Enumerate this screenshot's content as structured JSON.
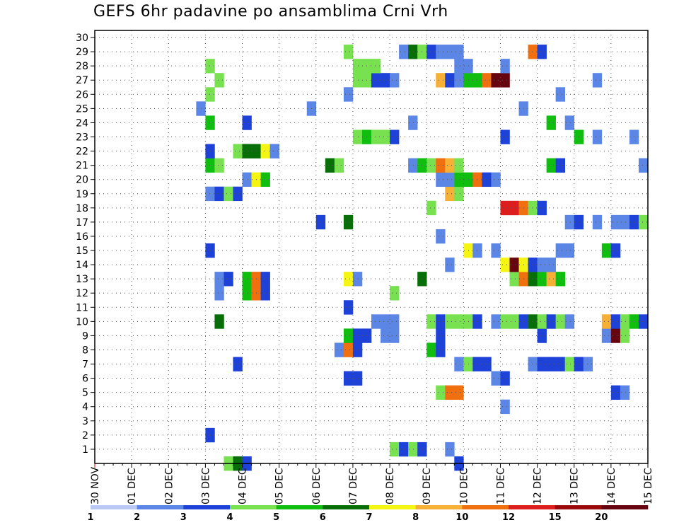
{
  "title": "GEFS 6hr padavine po ansamblima Crni Vrh",
  "chart_data": {
    "type": "heatmap",
    "title": "GEFS 6hr padavine po ansamblima Crni Vrh",
    "x_tick_labels": [
      "30 NOV",
      "01 DEC",
      "02 DEC",
      "03 DEC",
      "04 DEC",
      "05 DEC",
      "06 DEC",
      "07 DEC",
      "08 DEC",
      "09 DEC",
      "10 DEC",
      "11 DEC",
      "12 DEC",
      "13 DEC",
      "14 DEC",
      "15 DEC"
    ],
    "y_tick_labels": [
      "1",
      "2",
      "3",
      "4",
      "5",
      "6",
      "7",
      "8",
      "9",
      "10",
      "11",
      "12",
      "13",
      "14",
      "15",
      "16",
      "17",
      "18",
      "19",
      "20",
      "21",
      "22",
      "23",
      "24",
      "25",
      "26",
      "27",
      "28",
      "29",
      "30"
    ],
    "y_range": [
      0,
      30
    ],
    "x_range_days": [
      0,
      15
    ],
    "time_step_hours": 6,
    "grid": "dotted",
    "colorbar": {
      "labels": [
        "1",
        "2",
        "3",
        "4",
        "5",
        "6",
        "7",
        "8",
        "10",
        "12",
        "15",
        "20"
      ],
      "colors": [
        "#b9c8f5",
        "#5b86e6",
        "#1e42d8",
        "#78e150",
        "#10be10",
        "#086e08",
        "#f5f514",
        "#f5b035",
        "#f0700f",
        "#dc1e1e",
        "#9b0a0a",
        "#66050f"
      ]
    },
    "cells": [
      [
        3.5,
        0,
        3
      ],
      [
        3.75,
        0,
        5
      ],
      [
        4.0,
        0,
        2
      ],
      [
        9.75,
        0,
        2
      ],
      [
        8.0,
        1,
        3
      ],
      [
        8.25,
        1,
        2
      ],
      [
        8.5,
        1,
        3
      ],
      [
        8.75,
        1,
        2
      ],
      [
        9.5,
        1,
        1
      ],
      [
        3.0,
        2,
        2
      ],
      [
        11.0,
        4,
        1
      ],
      [
        9.25,
        5,
        3
      ],
      [
        9.5,
        5,
        8
      ],
      [
        9.75,
        5,
        8
      ],
      [
        14.0,
        5,
        2
      ],
      [
        14.25,
        5,
        1
      ],
      [
        6.75,
        6,
        2
      ],
      [
        7.0,
        6,
        2
      ],
      [
        10.75,
        6,
        1
      ],
      [
        11.0,
        6,
        2
      ],
      [
        3.75,
        7,
        2
      ],
      [
        9.75,
        7,
        1
      ],
      [
        10.0,
        7,
        3
      ],
      [
        10.25,
        7,
        2
      ],
      [
        10.5,
        7,
        2
      ],
      [
        11.75,
        7,
        1
      ],
      [
        12.0,
        7,
        2
      ],
      [
        12.25,
        7,
        2
      ],
      [
        12.5,
        7,
        2
      ],
      [
        12.75,
        7,
        3
      ],
      [
        13.0,
        7,
        2
      ],
      [
        13.25,
        7,
        1
      ],
      [
        6.5,
        8,
        1
      ],
      [
        6.75,
        8,
        8
      ],
      [
        7.0,
        8,
        2
      ],
      [
        9.0,
        8,
        4
      ],
      [
        9.25,
        8,
        2
      ],
      [
        6.75,
        9,
        4
      ],
      [
        7.0,
        9,
        2
      ],
      [
        7.25,
        9,
        2
      ],
      [
        7.75,
        9,
        1
      ],
      [
        8.0,
        9,
        1
      ],
      [
        9.25,
        9,
        2
      ],
      [
        12.0,
        9,
        2
      ],
      [
        13.75,
        9,
        1
      ],
      [
        14.0,
        9,
        11
      ],
      [
        14.25,
        9,
        3
      ],
      [
        3.25,
        10,
        5
      ],
      [
        7.5,
        10,
        1
      ],
      [
        7.75,
        10,
        1
      ],
      [
        8.0,
        10,
        1
      ],
      [
        9.0,
        10,
        3
      ],
      [
        9.25,
        10,
        2
      ],
      [
        9.5,
        10,
        3
      ],
      [
        9.75,
        10,
        3
      ],
      [
        10.0,
        10,
        3
      ],
      [
        10.25,
        10,
        2
      ],
      [
        10.75,
        10,
        1
      ],
      [
        11.0,
        10,
        3
      ],
      [
        11.25,
        10,
        3
      ],
      [
        11.5,
        10,
        2
      ],
      [
        11.75,
        10,
        5
      ],
      [
        12.0,
        10,
        3
      ],
      [
        12.25,
        10,
        2
      ],
      [
        12.5,
        10,
        3
      ],
      [
        12.75,
        10,
        1
      ],
      [
        13.75,
        10,
        7
      ],
      [
        14.0,
        10,
        2
      ],
      [
        14.25,
        10,
        3
      ],
      [
        14.5,
        10,
        4
      ],
      [
        14.75,
        10,
        2
      ],
      [
        6.75,
        11,
        2
      ],
      [
        3.25,
        12,
        1
      ],
      [
        4.0,
        12,
        4
      ],
      [
        4.25,
        12,
        8
      ],
      [
        4.5,
        12,
        2
      ],
      [
        8.0,
        12,
        3
      ],
      [
        3.25,
        13,
        1
      ],
      [
        3.5,
        13,
        2
      ],
      [
        4.0,
        13,
        4
      ],
      [
        4.25,
        13,
        8
      ],
      [
        4.5,
        13,
        2
      ],
      [
        6.75,
        13,
        6
      ],
      [
        7.0,
        13,
        1
      ],
      [
        8.75,
        13,
        5
      ],
      [
        11.25,
        13,
        3
      ],
      [
        11.5,
        13,
        8
      ],
      [
        11.75,
        13,
        5
      ],
      [
        12.0,
        13,
        4
      ],
      [
        12.25,
        13,
        7
      ],
      [
        12.5,
        13,
        4
      ],
      [
        9.5,
        14,
        1
      ],
      [
        11.0,
        14,
        6
      ],
      [
        11.25,
        14,
        11
      ],
      [
        11.5,
        14,
        6
      ],
      [
        11.75,
        14,
        2
      ],
      [
        12.0,
        14,
        1
      ],
      [
        12.25,
        14,
        1
      ],
      [
        3.0,
        15,
        2
      ],
      [
        10.0,
        15,
        6
      ],
      [
        10.25,
        15,
        1
      ],
      [
        10.75,
        15,
        1
      ],
      [
        12.5,
        15,
        1
      ],
      [
        12.75,
        15,
        1
      ],
      [
        13.75,
        15,
        4
      ],
      [
        14.0,
        15,
        2
      ],
      [
        9.25,
        16,
        1
      ],
      [
        6.0,
        17,
        2
      ],
      [
        6.75,
        17,
        5
      ],
      [
        12.75,
        17,
        1
      ],
      [
        13.0,
        17,
        2
      ],
      [
        13.5,
        17,
        1
      ],
      [
        14.0,
        17,
        1
      ],
      [
        14.25,
        17,
        1
      ],
      [
        14.5,
        17,
        2
      ],
      [
        14.75,
        17,
        3
      ],
      [
        9.0,
        18,
        3
      ],
      [
        11.0,
        18,
        9
      ],
      [
        11.25,
        18,
        9
      ],
      [
        11.5,
        18,
        8
      ],
      [
        11.75,
        18,
        3
      ],
      [
        12.0,
        18,
        2
      ],
      [
        3.0,
        19,
        1
      ],
      [
        3.25,
        19,
        2
      ],
      [
        3.5,
        19,
        3
      ],
      [
        3.75,
        19,
        2
      ],
      [
        9.5,
        19,
        7
      ],
      [
        9.75,
        19,
        3
      ],
      [
        4.0,
        20,
        1
      ],
      [
        4.25,
        20,
        6
      ],
      [
        4.5,
        20,
        4
      ],
      [
        9.25,
        20,
        1
      ],
      [
        9.5,
        20,
        1
      ],
      [
        9.75,
        20,
        4
      ],
      [
        10.0,
        20,
        4
      ],
      [
        10.25,
        20,
        8
      ],
      [
        10.5,
        20,
        2
      ],
      [
        10.75,
        20,
        1
      ],
      [
        3.0,
        21,
        4
      ],
      [
        3.25,
        21,
        3
      ],
      [
        6.25,
        21,
        5
      ],
      [
        6.5,
        21,
        3
      ],
      [
        8.5,
        21,
        1
      ],
      [
        8.75,
        21,
        4
      ],
      [
        9.0,
        21,
        3
      ],
      [
        9.25,
        21,
        8
      ],
      [
        9.5,
        21,
        7
      ],
      [
        9.75,
        21,
        3
      ],
      [
        12.25,
        21,
        4
      ],
      [
        12.5,
        21,
        2
      ],
      [
        14.75,
        21,
        1
      ],
      [
        3.0,
        22,
        2
      ],
      [
        3.75,
        22,
        3
      ],
      [
        4.0,
        22,
        5
      ],
      [
        4.25,
        22,
        5
      ],
      [
        4.5,
        22,
        6
      ],
      [
        4.75,
        22,
        1
      ],
      [
        7.0,
        23,
        3
      ],
      [
        7.25,
        23,
        4
      ],
      [
        7.5,
        23,
        3
      ],
      [
        7.75,
        23,
        3
      ],
      [
        8.0,
        23,
        2
      ],
      [
        11.0,
        23,
        2
      ],
      [
        13.0,
        23,
        4
      ],
      [
        13.5,
        23,
        1
      ],
      [
        14.5,
        23,
        1
      ],
      [
        3.0,
        24,
        4
      ],
      [
        4.0,
        24,
        2
      ],
      [
        8.5,
        24,
        1
      ],
      [
        12.25,
        24,
        4
      ],
      [
        12.75,
        24,
        1
      ],
      [
        2.75,
        25,
        1
      ],
      [
        5.75,
        25,
        1
      ],
      [
        11.5,
        25,
        1
      ],
      [
        3.0,
        26,
        3
      ],
      [
        6.75,
        26,
        1
      ],
      [
        12.5,
        26,
        1
      ],
      [
        3.25,
        27,
        3
      ],
      [
        7.0,
        27,
        3
      ],
      [
        7.25,
        27,
        3
      ],
      [
        7.5,
        27,
        2
      ],
      [
        7.75,
        27,
        2
      ],
      [
        8.0,
        27,
        1
      ],
      [
        9.25,
        27,
        7
      ],
      [
        9.5,
        27,
        2
      ],
      [
        9.75,
        27,
        1
      ],
      [
        10.0,
        27,
        4
      ],
      [
        10.25,
        27,
        4
      ],
      [
        10.5,
        27,
        8
      ],
      [
        10.75,
        27,
        11
      ],
      [
        11.0,
        27,
        11
      ],
      [
        13.5,
        27,
        1
      ],
      [
        3.0,
        28,
        3
      ],
      [
        7.0,
        28,
        3
      ],
      [
        7.25,
        28,
        3
      ],
      [
        7.5,
        28,
        3
      ],
      [
        9.75,
        28,
        1
      ],
      [
        10.0,
        28,
        1
      ],
      [
        11.0,
        28,
        1
      ],
      [
        6.75,
        29,
        3
      ],
      [
        8.25,
        29,
        1
      ],
      [
        8.5,
        29,
        5
      ],
      [
        8.75,
        29,
        3
      ],
      [
        9.0,
        29,
        2
      ],
      [
        9.25,
        29,
        1
      ],
      [
        9.5,
        29,
        1
      ],
      [
        9.75,
        29,
        1
      ],
      [
        11.75,
        29,
        8
      ],
      [
        12.0,
        29,
        2
      ]
    ]
  }
}
